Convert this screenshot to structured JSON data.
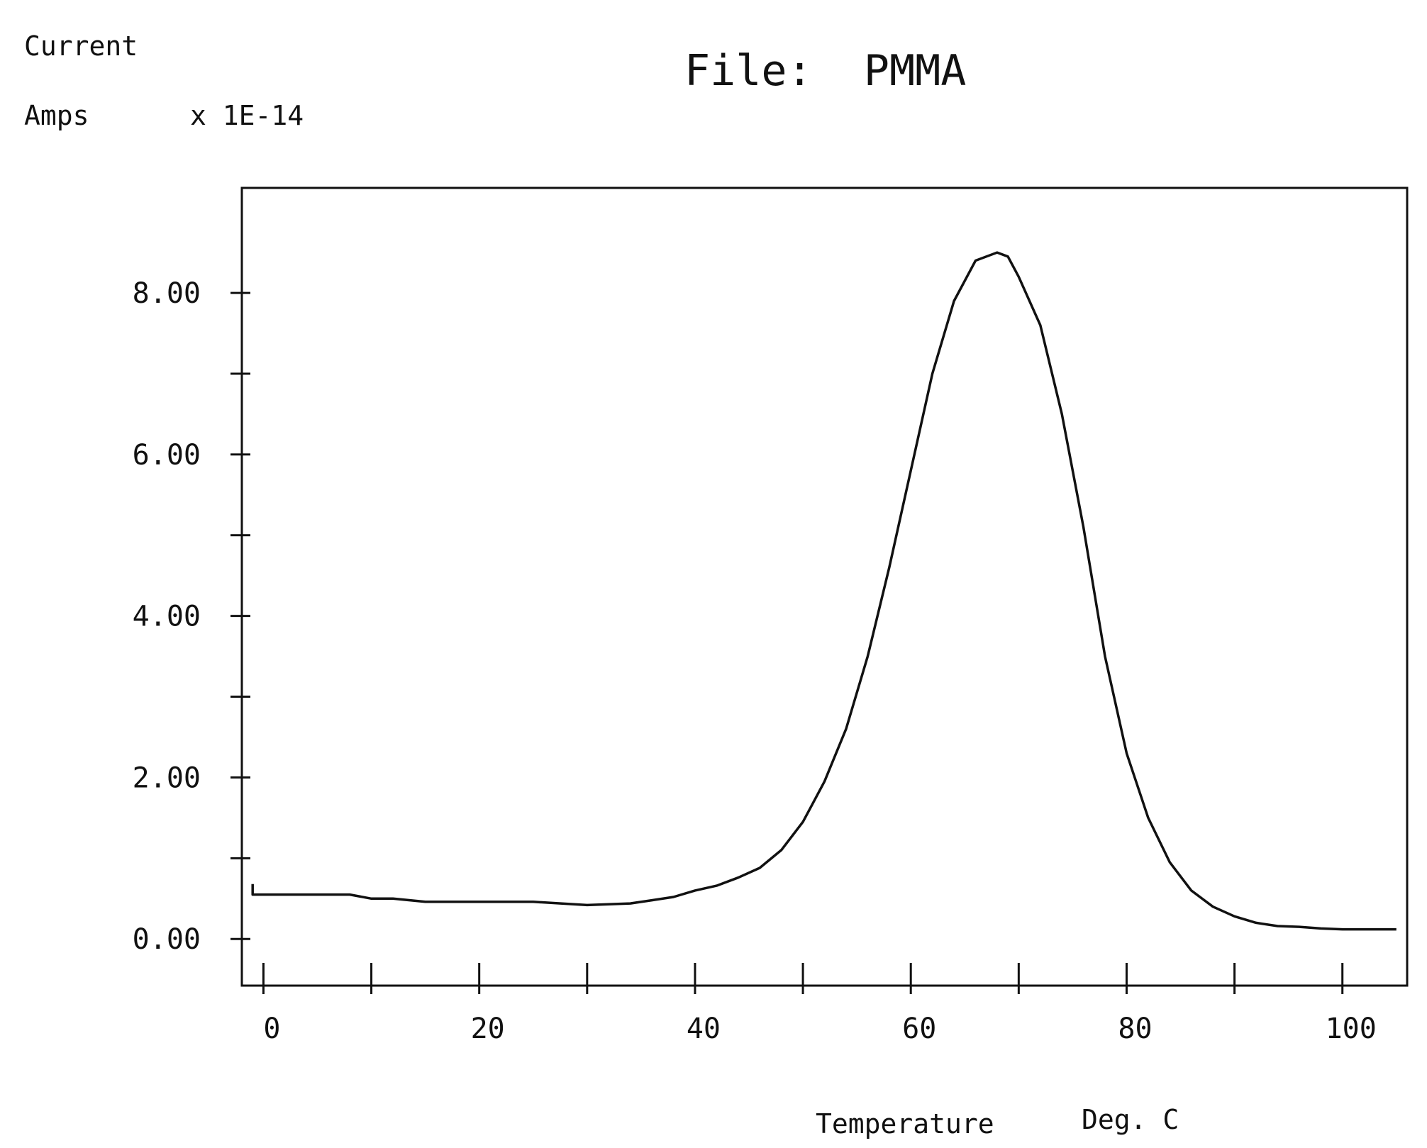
{
  "chart_data": {
    "type": "line",
    "title": "File:  PMMA",
    "ylabel_lines": [
      "Current",
      "Amps"
    ],
    "y_multiplier": "x 1E-14",
    "xlabel": "Temperaturе",
    "xunit": "Deg. C",
    "xlim": [
      -2,
      106
    ],
    "ylim": [
      -0.2,
      9.3
    ],
    "x_ticks": [
      0,
      10,
      20,
      30,
      40,
      50,
      60,
      70,
      80,
      90,
      100
    ],
    "x_tick_labels": [
      "0",
      "20",
      "40",
      "60",
      "80",
      "100"
    ],
    "x_tick_label_values": [
      0,
      20,
      40,
      60,
      80,
      100
    ],
    "y_ticks": [
      0,
      1,
      2,
      3,
      4,
      5,
      6,
      7,
      8
    ],
    "y_tick_labels": [
      "0.00",
      "2.00",
      "4.00",
      "6.00",
      "8.00"
    ],
    "y_tick_label_values": [
      0,
      2,
      4,
      6,
      8
    ],
    "grid": false,
    "colors": {
      "line": "#111111",
      "axis": "#111111",
      "background": "#ffffff"
    },
    "series": [
      {
        "x": [
          -1,
          -1,
          5,
          8,
          10,
          12,
          15,
          20,
          25,
          30,
          34,
          36,
          38,
          40,
          42,
          44,
          46,
          48,
          50,
          52,
          54,
          56,
          58,
          60,
          62,
          64,
          66,
          68,
          69,
          70,
          72,
          74,
          76,
          78,
          80,
          82,
          84,
          86,
          88,
          90,
          92,
          94,
          96,
          98,
          100,
          102,
          104,
          105
        ],
        "y": [
          0.68,
          0.55,
          0.55,
          0.55,
          0.5,
          0.5,
          0.46,
          0.46,
          0.46,
          0.42,
          0.44,
          0.48,
          0.52,
          0.6,
          0.66,
          0.76,
          0.88,
          1.1,
          1.45,
          1.95,
          2.6,
          3.5,
          4.6,
          5.8,
          7.0,
          7.9,
          8.4,
          8.5,
          8.45,
          8.2,
          7.6,
          6.5,
          5.1,
          3.5,
          2.3,
          1.5,
          0.95,
          0.6,
          0.4,
          0.28,
          0.2,
          0.16,
          0.15,
          0.13,
          0.12,
          0.12,
          0.12,
          0.12
        ]
      }
    ]
  }
}
